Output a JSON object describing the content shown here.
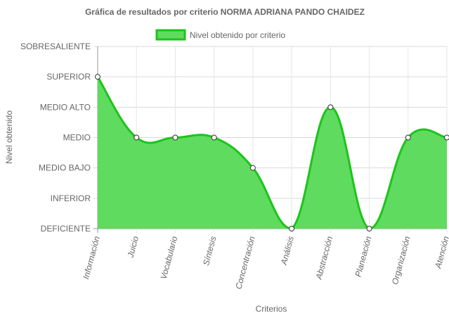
{
  "chart_data": {
    "type": "area",
    "title": "Gráfica de resultados por criterio NORMA ADRIANA PANDO CHAIDEZ",
    "xlabel": "Criterios",
    "ylabel": "Nivel obtenido",
    "y_levels": [
      "DEFICIENTE",
      "INFERIOR",
      "MEDIO BAJO",
      "MEDIO",
      "MEDIO ALTO",
      "SUPERIOR",
      "SOBRESALIENTE"
    ],
    "ylim": [
      0,
      6
    ],
    "categories": [
      "Información",
      "Juicio",
      "Vocabulario",
      "Síntesis",
      "Concentración",
      "Análisis",
      "Abstracción",
      "Planeación",
      "Organización",
      "Atención"
    ],
    "series": [
      {
        "name": "Nivel obtenido por criterio",
        "values": [
          5,
          3,
          3,
          3,
          2,
          0,
          4,
          0,
          3,
          3
        ],
        "color": "#1cc41c",
        "fill": "#5fdb5f"
      }
    ],
    "legend_position": "top",
    "grid": true
  }
}
